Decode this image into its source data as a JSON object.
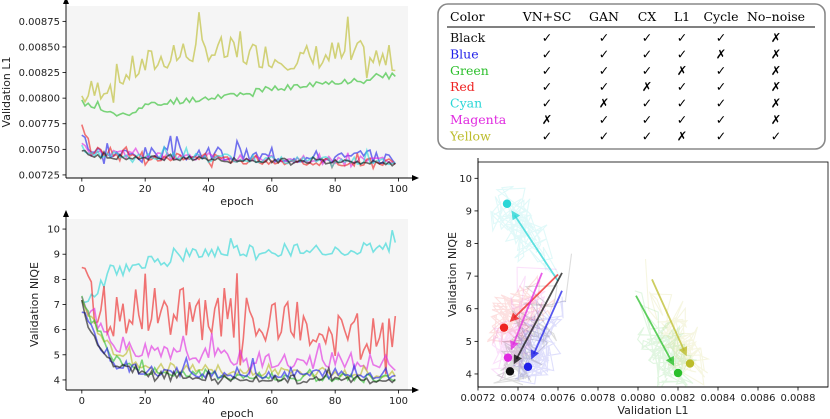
{
  "colors": {
    "Black": "#111111",
    "Blue": "#1f1fe8",
    "Green": "#2bbf2b",
    "Red": "#ee2222",
    "Cyan": "#2ad6d6",
    "Magenta": "#e02ae0",
    "Yellow": "#bcbc2a",
    "plot_bg": "#f5f5f5"
  },
  "table": {
    "headers": [
      "Color",
      "VN+SC",
      "GAN",
      "CX",
      "L1",
      "Cycle",
      "No–noise"
    ],
    "rows": [
      {
        "name": "Black",
        "marks": [
          "✓",
          "✓",
          "✓",
          "✓",
          "✓",
          "✗"
        ]
      },
      {
        "name": "Blue",
        "marks": [
          "✓",
          "✓",
          "✓",
          "✓",
          "✗",
          "✗"
        ]
      },
      {
        "name": "Green",
        "marks": [
          "✓",
          "✓",
          "✓",
          "✗",
          "✓",
          "✗"
        ]
      },
      {
        "name": "Red",
        "marks": [
          "✓",
          "✓",
          "✗",
          "✓",
          "✓",
          "✗"
        ]
      },
      {
        "name": "Cyan",
        "marks": [
          "✓",
          "✗",
          "✓",
          "✓",
          "✓",
          "✗"
        ]
      },
      {
        "name": "Magenta",
        "marks": [
          "✗",
          "✓",
          "✓",
          "✓",
          "✓",
          "✗"
        ]
      },
      {
        "name": "Yellow",
        "marks": [
          "✓",
          "✓",
          "✓",
          "✗",
          "✓",
          "✓"
        ]
      }
    ]
  },
  "chart_data": [
    {
      "type": "line",
      "xlabel": "epoch",
      "ylabel": "Validation L1",
      "xlim": [
        -5,
        103
      ],
      "ylim": [
        0.00722,
        0.0089
      ],
      "xticks": [
        0,
        20,
        40,
        60,
        80,
        100
      ],
      "yticks": [
        0.00725,
        0.0075,
        0.00775,
        0.008,
        0.00825,
        0.0085,
        0.00875
      ],
      "ytick_labels": [
        "0.00725",
        "0.00750",
        "0.00775",
        "0.00800",
        "0.00825",
        "0.00850",
        "0.00875"
      ],
      "grid": false,
      "series": [
        {
          "color_key": "Yellow",
          "trend": [
            [
              0,
              0.008
            ],
            [
              5,
              0.00805
            ],
            [
              10,
              0.00815
            ],
            [
              20,
              0.0083
            ],
            [
              30,
              0.0084
            ],
            [
              40,
              0.00845
            ],
            [
              50,
              0.0084
            ],
            [
              60,
              0.00838
            ],
            [
              70,
              0.00835
            ],
            [
              80,
              0.0084
            ],
            [
              90,
              0.00838
            ],
            [
              99,
              0.00833
            ]
          ],
          "noise": 0.00018,
          "seed": 7
        },
        {
          "color_key": "Green",
          "trend": [
            [
              0,
              0.00795
            ],
            [
              5,
              0.0079
            ],
            [
              10,
              0.00783
            ],
            [
              15,
              0.00785
            ],
            [
              20,
              0.00792
            ],
            [
              40,
              0.008
            ],
            [
              60,
              0.00808
            ],
            [
              80,
              0.00815
            ],
            [
              99,
              0.00822
            ]
          ],
          "noise": 4e-05,
          "seed": 11
        },
        {
          "color_key": "Blue",
          "trend": [
            [
              0,
              0.0077
            ],
            [
              3,
              0.00748
            ],
            [
              10,
              0.00745
            ],
            [
              30,
              0.00744
            ],
            [
              60,
              0.00742
            ],
            [
              99,
              0.0074
            ]
          ],
          "noise": 9e-05,
          "seed": 3
        },
        {
          "color_key": "Magenta",
          "trend": [
            [
              0,
              0.00752
            ],
            [
              5,
              0.00745
            ],
            [
              30,
              0.00742
            ],
            [
              60,
              0.0074
            ],
            [
              99,
              0.00738
            ]
          ],
          "noise": 5e-05,
          "seed": 5
        },
        {
          "color_key": "Red",
          "trend": [
            [
              0,
              0.00772
            ],
            [
              3,
              0.00748
            ],
            [
              20,
              0.00742
            ],
            [
              60,
              0.00738
            ],
            [
              99,
              0.00736
            ]
          ],
          "noise": 6e-05,
          "seed": 13
        },
        {
          "color_key": "Cyan",
          "trend": [
            [
              0,
              0.0075
            ],
            [
              5,
              0.00744
            ],
            [
              50,
              0.0074
            ],
            [
              99,
              0.00737
            ]
          ],
          "noise": 5e-05,
          "seed": 17
        },
        {
          "color_key": "Black",
          "trend": [
            [
              0,
              0.00748
            ],
            [
              5,
              0.00742
            ],
            [
              50,
              0.00739
            ],
            [
              99,
              0.00736
            ]
          ],
          "noise": 3e-05,
          "seed": 19
        }
      ]
    },
    {
      "type": "line",
      "xlabel": "epoch",
      "ylabel": "Validation NIQE",
      "xlim": [
        -5,
        103
      ],
      "ylim": [
        3.6,
        10.4
      ],
      "xticks": [
        0,
        20,
        40,
        60,
        80,
        100
      ],
      "yticks": [
        4,
        5,
        6,
        7,
        8,
        9,
        10
      ],
      "ytick_labels": [
        "4",
        "5",
        "6",
        "7",
        "8",
        "9",
        "10"
      ],
      "grid": false,
      "series": [
        {
          "color_key": "Cyan",
          "trend": [
            [
              0,
              6.8
            ],
            [
              5,
              7.6
            ],
            [
              10,
              8.2
            ],
            [
              20,
              8.6
            ],
            [
              40,
              9.0
            ],
            [
              60,
              9.1
            ],
            [
              80,
              9.1
            ],
            [
              99,
              9.3
            ]
          ],
          "noise": 0.35,
          "seed": 23
        },
        {
          "color_key": "Red",
          "trend": [
            [
              0,
              7.3
            ],
            [
              3,
              7.0
            ],
            [
              10,
              6.3
            ],
            [
              20,
              6.6
            ],
            [
              40,
              6.2
            ],
            [
              60,
              6.0
            ],
            [
              80,
              5.6
            ],
            [
              99,
              5.4
            ]
          ],
          "noise": 1.3,
          "seed": 29
        },
        {
          "color_key": "Magenta",
          "trend": [
            [
              0,
              7.2
            ],
            [
              5,
              6.2
            ],
            [
              10,
              5.4
            ],
            [
              20,
              5.0
            ],
            [
              40,
              4.9
            ],
            [
              60,
              4.7
            ],
            [
              99,
              4.6
            ]
          ],
          "noise": 0.45,
          "seed": 31
        },
        {
          "color_key": "Yellow",
          "trend": [
            [
              0,
              7.0
            ],
            [
              5,
              6.0
            ],
            [
              10,
              5.0
            ],
            [
              20,
              4.5
            ],
            [
              50,
              4.3
            ],
            [
              99,
              4.2
            ]
          ],
          "noise": 0.25,
          "seed": 37
        },
        {
          "color_key": "Green",
          "trend": [
            [
              0,
              7.1
            ],
            [
              5,
              6.0
            ],
            [
              10,
              4.8
            ],
            [
              20,
              4.3
            ],
            [
              50,
              4.1
            ],
            [
              99,
              4.0
            ]
          ],
          "noise": 0.25,
          "seed": 41
        },
        {
          "color_key": "Blue",
          "trend": [
            [
              0,
              6.6
            ],
            [
              5,
              5.5
            ],
            [
              10,
              4.6
            ],
            [
              20,
              4.3
            ],
            [
              50,
              4.2
            ],
            [
              99,
              4.2
            ]
          ],
          "noise": 0.3,
          "seed": 43
        },
        {
          "color_key": "Black",
          "trend": [
            [
              0,
              6.7
            ],
            [
              5,
              5.4
            ],
            [
              10,
              4.6
            ],
            [
              20,
              4.2
            ],
            [
              50,
              4.0
            ],
            [
              99,
              4.0
            ]
          ],
          "noise": 0.2,
          "seed": 47
        }
      ]
    },
    {
      "type": "scatter",
      "xlabel": "Validation L1",
      "ylabel": "Validation NIQE",
      "xlim": [
        0.0072,
        0.00895
      ],
      "ylim": [
        3.6,
        10.5
      ],
      "xticks": [
        0.0072,
        0.0074,
        0.0076,
        0.0078,
        0.008,
        0.0082,
        0.0084,
        0.0086,
        0.0088
      ],
      "xtick_labels": [
        "0.0072",
        "0.0074",
        "0.0076",
        "0.0078",
        "0.0080",
        "0.0082",
        "0.0084",
        "0.0086",
        "0.0088"
      ],
      "yticks": [
        4,
        5,
        6,
        7,
        8,
        9,
        10
      ],
      "ytick_labels": [
        "4",
        "5",
        "6",
        "7",
        "8",
        "9",
        "10"
      ],
      "grid": false,
      "points": [
        {
          "color_key": "Cyan",
          "final": [
            0.007345,
            9.22
          ],
          "start": [
            0.0076,
            6.85
          ]
        },
        {
          "color_key": "Red",
          "final": [
            0.00733,
            5.42
          ],
          "start": [
            0.0076,
            7.05
          ]
        },
        {
          "color_key": "Magenta",
          "final": [
            0.00735,
            4.5
          ],
          "start": [
            0.00752,
            7.1
          ]
        },
        {
          "color_key": "Black",
          "final": [
            0.00736,
            4.08
          ],
          "start": [
            0.00762,
            7.1
          ]
        },
        {
          "color_key": "Blue",
          "final": [
            0.00745,
            4.22
          ],
          "start": [
            0.00762,
            6.55
          ]
        },
        {
          "color_key": "Green",
          "final": [
            0.0082,
            4.03
          ],
          "start": [
            0.00799,
            6.4
          ]
        },
        {
          "color_key": "Yellow",
          "final": [
            0.00826,
            4.32
          ],
          "start": [
            0.00807,
            6.9
          ]
        }
      ]
    }
  ]
}
